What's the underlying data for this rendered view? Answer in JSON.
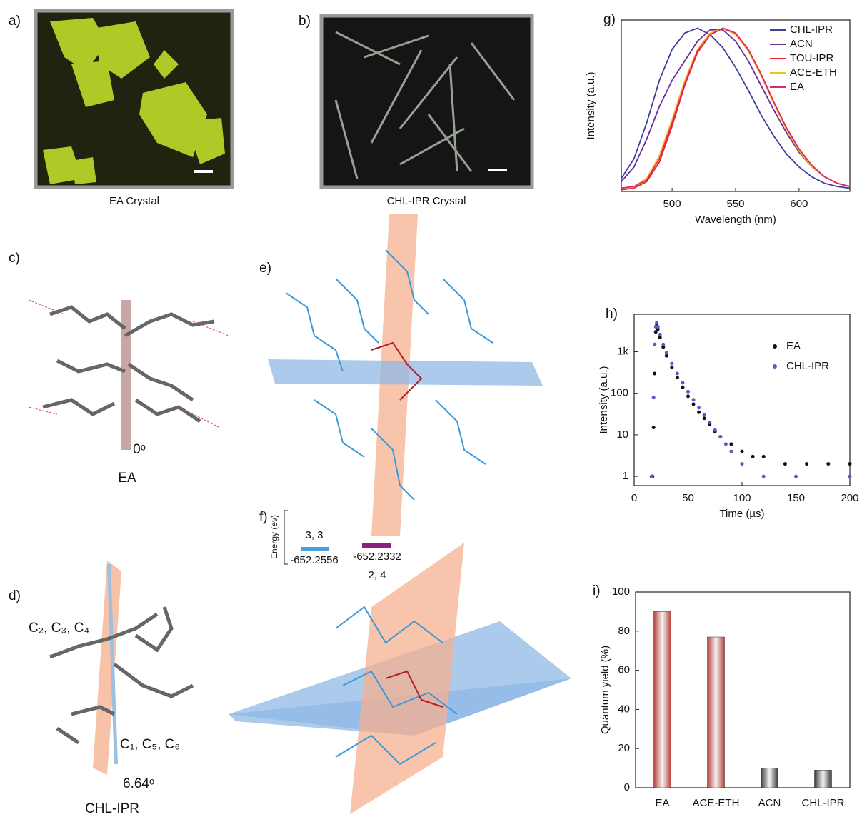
{
  "panels": {
    "a": {
      "label": "a)",
      "caption": "EA Crystal"
    },
    "b": {
      "label": "b)",
      "caption": "CHL-IPR Crystal"
    },
    "c": {
      "label": "c)",
      "angle": "0ᵒ",
      "caption": "EA"
    },
    "d": {
      "label": "d)",
      "atoms_top": "C₂, C₃, C₄",
      "atoms_bottom": "C₁, C₅, C₆",
      "angle": "6.64ᵒ",
      "caption": "CHL-IPR"
    },
    "e": {
      "label": "e)"
    },
    "f": {
      "label": "f)",
      "axis_label": "Energy (ev)",
      "level1_name": "3, 3",
      "level1_value": "-652.2556",
      "level2_value": "-652.2332",
      "level2_name": "2, 4"
    }
  },
  "chart_data": [
    {
      "type": "line",
      "label": "g)",
      "xlabel": "Wavelength (nm)",
      "ylabel": "Intensity (a.u.)",
      "x": [
        460,
        470,
        480,
        490,
        500,
        510,
        520,
        530,
        540,
        550,
        560,
        570,
        580,
        590,
        600,
        610,
        620,
        630,
        640
      ],
      "xlim": [
        460,
        640
      ],
      "xticks": [
        500,
        550,
        600
      ],
      "ylim": [
        0,
        1.05
      ],
      "legend": "upper right",
      "series": [
        {
          "name": "CHL-IPR",
          "color": "#3b3f9e",
          "values": [
            0.08,
            0.2,
            0.42,
            0.68,
            0.87,
            0.97,
            1.0,
            0.96,
            0.88,
            0.76,
            0.62,
            0.47,
            0.34,
            0.23,
            0.15,
            0.09,
            0.05,
            0.03,
            0.02
          ]
        },
        {
          "name": "ACN",
          "color": "#6b2c9a",
          "values": [
            0.06,
            0.15,
            0.32,
            0.52,
            0.68,
            0.8,
            0.92,
            0.99,
            0.99,
            0.92,
            0.8,
            0.65,
            0.5,
            0.36,
            0.24,
            0.15,
            0.09,
            0.05,
            0.03
          ]
        },
        {
          "name": "TOU-IPR",
          "color": "#e8252a",
          "values": [
            0.01,
            0.02,
            0.06,
            0.18,
            0.4,
            0.65,
            0.85,
            0.96,
            1.0,
            0.97,
            0.87,
            0.72,
            0.55,
            0.39,
            0.26,
            0.16,
            0.09,
            0.05,
            0.03
          ]
        },
        {
          "name": "ACE-ETH",
          "color": "#f0c419",
          "values": [
            0.02,
            0.03,
            0.08,
            0.22,
            0.44,
            0.68,
            0.87,
            0.97,
            1.0,
            0.96,
            0.86,
            0.71,
            0.54,
            0.38,
            0.25,
            0.15,
            0.09,
            0.05,
            0.03
          ]
        },
        {
          "name": "EA",
          "color": "#e3246a",
          "values": [
            0.02,
            0.03,
            0.07,
            0.2,
            0.42,
            0.66,
            0.86,
            0.96,
            1.0,
            0.97,
            0.87,
            0.72,
            0.55,
            0.39,
            0.26,
            0.16,
            0.09,
            0.05,
            0.03
          ]
        }
      ]
    },
    {
      "type": "scatter",
      "label": "h)",
      "xlabel": "Time (µs)",
      "ylabel": "Intensity (a.u.)",
      "xlim": [
        0,
        200
      ],
      "xticks": [
        0,
        50,
        100,
        150,
        200
      ],
      "yscale": "log",
      "ylim": [
        0.6,
        8000
      ],
      "yticks": [
        1,
        10,
        100,
        {
          "value": 1000,
          "label": "1k"
        }
      ],
      "legend": "upper right",
      "series": [
        {
          "name": "EA",
          "color": "#111111",
          "x": [
            17,
            18,
            19,
            20,
            21,
            22,
            24,
            27,
            30,
            35,
            40,
            45,
            50,
            55,
            60,
            65,
            70,
            75,
            80,
            90,
            100,
            110,
            120,
            140,
            160,
            180,
            200
          ],
          "values": [
            1,
            15,
            300,
            3000,
            4500,
            3500,
            2200,
            1300,
            800,
            420,
            240,
            140,
            85,
            55,
            35,
            25,
            18,
            12,
            9,
            6,
            4,
            3,
            3,
            2,
            2,
            2,
            2
          ]
        },
        {
          "name": "CHL-IPR",
          "color": "#5a5ad0",
          "x": [
            16,
            18,
            19,
            20,
            21,
            22,
            24,
            27,
            30,
            35,
            40,
            45,
            50,
            55,
            60,
            65,
            70,
            75,
            80,
            85,
            90,
            100,
            120,
            150,
            200
          ],
          "values": [
            1,
            80,
            1500,
            4000,
            5000,
            4000,
            2600,
            1500,
            950,
            520,
            300,
            180,
            110,
            70,
            45,
            30,
            20,
            13,
            9,
            6,
            4,
            2,
            1,
            1,
            1
          ]
        }
      ]
    },
    {
      "type": "bar",
      "label": "i)",
      "ylabel": "Quantum yield (%)",
      "categories": [
        "EA",
        "ACE-ETH",
        "ACN",
        "CHL-IPR"
      ],
      "values": [
        90,
        77,
        10,
        9
      ],
      "colors": [
        "#b8413a",
        "#b8413a",
        "#3a3a3a",
        "#3a3a3a"
      ],
      "ylim": [
        0,
        100
      ],
      "yticks": [
        0,
        20,
        40,
        60,
        80,
        100
      ]
    }
  ]
}
